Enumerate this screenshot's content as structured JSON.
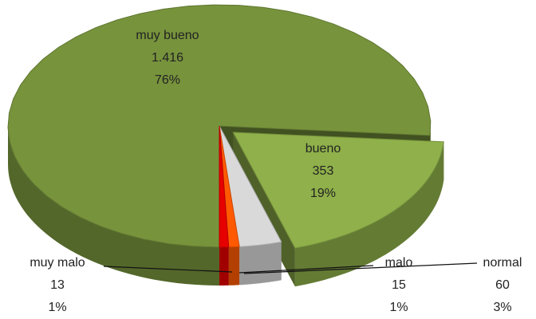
{
  "chart_data": {
    "type": "pie",
    "categories": [
      "muy bueno",
      "bueno",
      "normal",
      "malo",
      "muy malo"
    ],
    "values": [
      1416,
      353,
      60,
      15,
      13
    ],
    "value_labels": [
      "1.416",
      "353",
      "60",
      "15",
      "13"
    ],
    "percent_labels": [
      "76%",
      "19%",
      "3%",
      "1%",
      "1%"
    ],
    "colors": [
      "#77933c",
      "#8fb04a",
      "#d9d9d9",
      "#ff5a00",
      "#e60000"
    ],
    "exploded": [
      false,
      true,
      false,
      false,
      false
    ],
    "three_d": true
  }
}
